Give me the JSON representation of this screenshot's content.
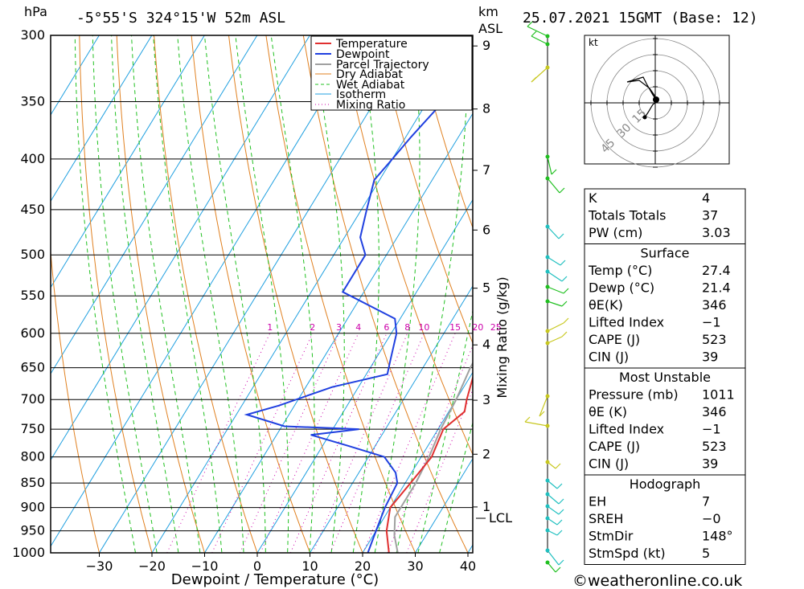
{
  "header": {
    "hpa_unit": "hPa",
    "location": "-5°55'S 324°15'W 52m ASL",
    "km_unit": "km",
    "asl_unit": "ASL",
    "datetime": "25.07.2021 15GMT (Base: 12)"
  },
  "chart_data": {
    "type": "line",
    "title": "",
    "xlabel": "Dewpoint / Temperature (°C)",
    "ylabel": "hPa",
    "secondary_ylabel": "Mixing Ratio (g/kg)",
    "x_ticks": [
      "-30",
      "-20",
      "-10",
      "0",
      "10",
      "20",
      "30",
      "40"
    ],
    "pressure_ticks": [
      "300",
      "350",
      "400",
      "450",
      "500",
      "550",
      "600",
      "650",
      "700",
      "750",
      "800",
      "850",
      "900",
      "950",
      "1000"
    ],
    "km_ticks": [
      "9",
      "8",
      "7",
      "6",
      "5",
      "4",
      "3",
      "2",
      "1"
    ],
    "lcl_label": "LCL",
    "mixing_ratio_labels": [
      "1",
      "2",
      "3",
      "4",
      "6",
      "8",
      "10",
      "15",
      "20",
      "25"
    ],
    "legend": [
      "Temperature",
      "Dewpoint",
      "Parcel Trajectory",
      "Dry Adiabat",
      "Wet Adiabat",
      "Isotherm",
      "Mixing Ratio"
    ],
    "colors": {
      "temperature": "#e03030",
      "dewpoint": "#2040e0",
      "parcel": "#a0a0a0",
      "dry_adiabat": "#e08020",
      "wet_adiabat": "#20c020",
      "isotherm": "#20a0e0",
      "mixing_ratio": "#cc00aa"
    },
    "series": [
      {
        "name": "Temperature",
        "points": [
          [
            27.4,
            1011
          ],
          [
            25,
            1000
          ],
          [
            22,
            950
          ],
          [
            20,
            900
          ],
          [
            21,
            850
          ],
          [
            22,
            800
          ],
          [
            21,
            750
          ],
          [
            23,
            720
          ],
          [
            22,
            700
          ],
          [
            20,
            650
          ],
          [
            19,
            620
          ],
          [
            17,
            600
          ],
          [
            16.5,
            580
          ],
          [
            15.5,
            550
          ],
          [
            15.5,
            520
          ],
          [
            15,
            500
          ],
          [
            18.5,
            480
          ],
          [
            16,
            450
          ],
          [
            14,
            420
          ],
          [
            12,
            400
          ],
          [
            9,
            380
          ],
          [
            7,
            360
          ]
        ]
      },
      {
        "name": "Dewpoint",
        "points": [
          [
            21.4,
            1011
          ],
          [
            21,
            1000
          ],
          [
            20,
            950
          ],
          [
            19,
            900
          ],
          [
            18.5,
            850
          ],
          [
            17,
            830
          ],
          [
            13,
            800
          ],
          [
            5,
            780
          ],
          [
            -3.5,
            760
          ],
          [
            5,
            750
          ],
          [
            -9.5,
            745
          ],
          [
            -18,
            725
          ],
          [
            -13,
            710
          ],
          [
            -5,
            680
          ],
          [
            4,
            660
          ],
          [
            3,
            640
          ],
          [
            1,
            600
          ],
          [
            -1,
            580
          ],
          [
            -14,
            545
          ],
          [
            -14,
            500
          ],
          [
            -17,
            480
          ],
          [
            -19,
            450
          ],
          [
            -21,
            420
          ],
          [
            -20,
            400
          ],
          [
            -19,
            380
          ],
          [
            -17,
            350
          ],
          [
            -15,
            320
          ],
          [
            -13,
            300
          ]
        ]
      },
      {
        "name": "Parcel Trajectory",
        "points": [
          [
            27.4,
            1011
          ],
          [
            24,
            960
          ],
          [
            22,
            920
          ],
          [
            22,
            850
          ],
          [
            21.5,
            800
          ],
          [
            20.5,
            750
          ],
          [
            20,
            700
          ],
          [
            19,
            650
          ],
          [
            18.5,
            600
          ],
          [
            17.5,
            550
          ],
          [
            16.5,
            500
          ],
          [
            15,
            450
          ],
          [
            13,
            400
          ],
          [
            9,
            370
          ],
          [
            7,
            360
          ]
        ]
      }
    ],
    "upper_temperature": [
      [
        6,
        300
      ],
      [
        9,
        330
      ],
      [
        11,
        350
      ]
    ]
  },
  "indices": {
    "rows": [
      {
        "label": "K",
        "value": "4"
      },
      {
        "label": "Totals Totals",
        "value": "37"
      },
      {
        "label": "PW (cm)",
        "value": "3.03"
      }
    ]
  },
  "surface": {
    "title": "Surface",
    "rows": [
      {
        "label": "Temp (°C)",
        "value": "27.4"
      },
      {
        "label": "Dewp (°C)",
        "value": "21.4"
      },
      {
        "label": "θE(K)",
        "value": "346"
      },
      {
        "label": "Lifted Index",
        "value": "-1"
      },
      {
        "label": "CAPE (J)",
        "value": "523"
      },
      {
        "label": "CIN (J)",
        "value": "39"
      }
    ]
  },
  "most_unstable": {
    "title": "Most Unstable",
    "rows": [
      {
        "label": "Pressure (mb)",
        "value": "1011"
      },
      {
        "label": "θE (K)",
        "value": "346"
      },
      {
        "label": "Lifted Index",
        "value": "-1"
      },
      {
        "label": "CAPE (J)",
        "value": "523"
      },
      {
        "label": "CIN (J)",
        "value": "39"
      }
    ]
  },
  "hodograph": {
    "title": "Hodograph",
    "unit": "kt",
    "ring_labels": [
      "15",
      "30",
      "45"
    ],
    "rows": [
      {
        "label": "EH",
        "value": "7"
      },
      {
        "label": "SREH",
        "value": "-0"
      },
      {
        "label": "StmDir",
        "value": "148°"
      },
      {
        "label": "StmSpd (kt)",
        "value": "5"
      }
    ]
  },
  "footer": {
    "credit": "©weatheronline.co.uk"
  }
}
